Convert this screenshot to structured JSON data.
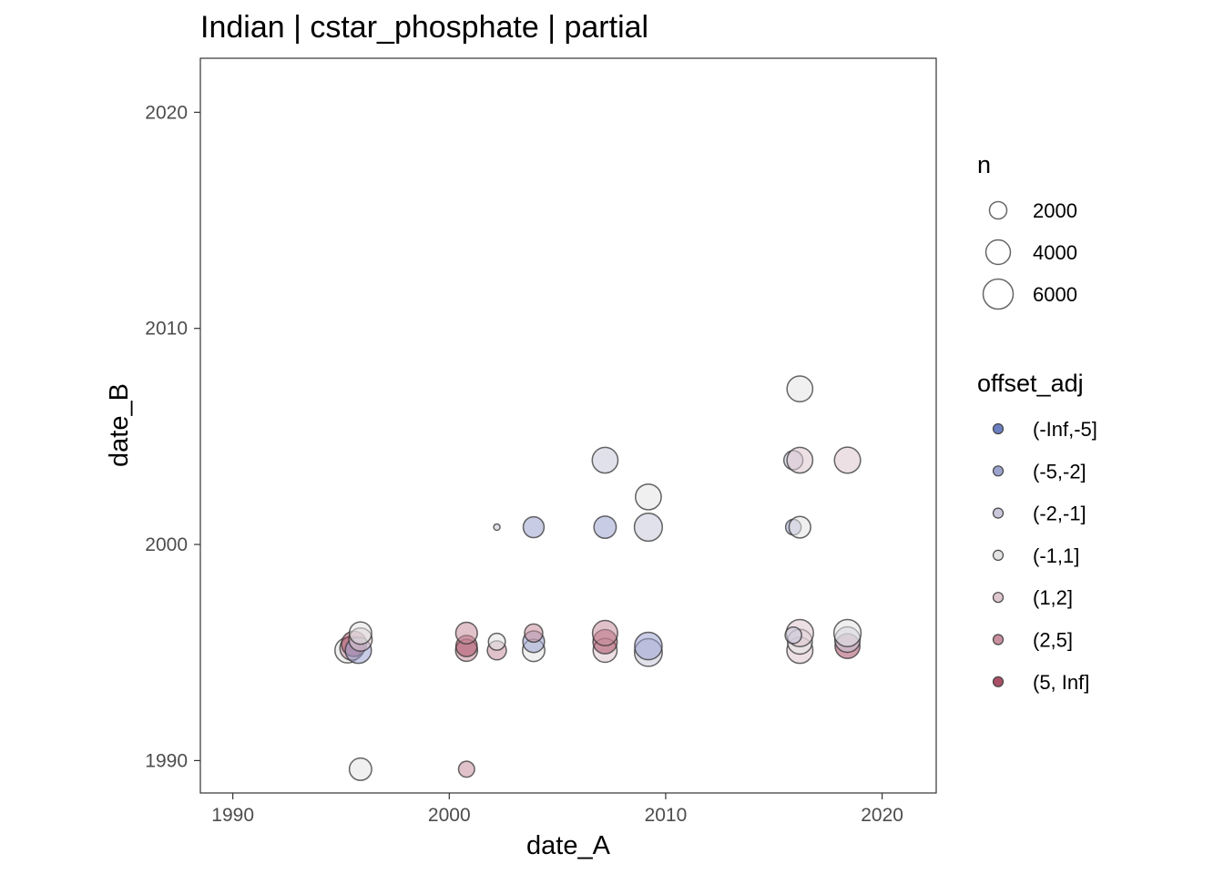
{
  "chart_data": {
    "type": "scatter",
    "title": "Indian | cstar_phosphate | partial",
    "xlabel": "date_A",
    "ylabel": "date_B",
    "xlim": [
      1988.5,
      2022.5
    ],
    "ylim": [
      1988.5,
      2022.5
    ],
    "x_ticks": [
      1990,
      2000,
      2010,
      2020
    ],
    "y_ticks": [
      1990,
      2000,
      2010,
      2020
    ],
    "x_tick_labels": [
      "1990",
      "2000",
      "2010",
      "2020"
    ],
    "y_tick_labels": [
      "1990",
      "2000",
      "2010",
      "2020"
    ],
    "grid": false,
    "legend_position": "right",
    "size_legend": {
      "title": "n",
      "values": [
        2000,
        4000,
        6000
      ],
      "labels": [
        "2000",
        "4000",
        "6000"
      ]
    },
    "color_legend": {
      "title": "offset_adj",
      "categories": [
        "(-Inf,-5]",
        "(-5,-2]",
        "(-2,-1]",
        "(-1,1]",
        "(1,2]",
        "(2,5]",
        "(5, Inf]"
      ],
      "colors": [
        "#6a7fc2",
        "#9ca3cf",
        "#c9c8da",
        "#e3e3e3",
        "#dfc7cf",
        "#c9909f",
        "#a94f66"
      ]
    },
    "points": [
      {
        "x": 1995.3,
        "y": 1995.1,
        "n": 4200,
        "cat": "(-1,1]"
      },
      {
        "x": 1995.5,
        "y": 1995.2,
        "n": 3800,
        "cat": "(2,5]"
      },
      {
        "x": 1995.6,
        "y": 1995.4,
        "n": 4200,
        "cat": "(5, Inf]"
      },
      {
        "x": 1995.8,
        "y": 1995.1,
        "n": 4500,
        "cat": "(-5,-2]"
      },
      {
        "x": 1995.9,
        "y": 1995.6,
        "n": 3600,
        "cat": "(1,2]"
      },
      {
        "x": 1995.9,
        "y": 1995.9,
        "n": 3300,
        "cat": "(-1,1]"
      },
      {
        "x": 1995.9,
        "y": 1989.6,
        "n": 3300,
        "cat": "(-1,1]"
      },
      {
        "x": 2000.8,
        "y": 1995.1,
        "n": 3200,
        "cat": "(2,5]"
      },
      {
        "x": 2000.8,
        "y": 1995.3,
        "n": 3000,
        "cat": "(5, Inf]"
      },
      {
        "x": 2000.8,
        "y": 1995.9,
        "n": 3100,
        "cat": "(2,5]"
      },
      {
        "x": 2000.8,
        "y": 1989.6,
        "n": 1700,
        "cat": "(2,5]"
      },
      {
        "x": 2002.2,
        "y": 1995.1,
        "n": 2400,
        "cat": "(2,5]"
      },
      {
        "x": 2002.2,
        "y": 1995.5,
        "n": 1900,
        "cat": "(-1,1]"
      },
      {
        "x": 2002.2,
        "y": 2000.8,
        "n": 250,
        "cat": "(-2,-1]"
      },
      {
        "x": 2003.9,
        "y": 1995.1,
        "n": 3300,
        "cat": "(-1,1]"
      },
      {
        "x": 2003.9,
        "y": 1995.5,
        "n": 3100,
        "cat": "(-5,-2]"
      },
      {
        "x": 2003.9,
        "y": 1995.9,
        "n": 2200,
        "cat": "(2,5]"
      },
      {
        "x": 2003.9,
        "y": 2000.8,
        "n": 2900,
        "cat": "(-5,-2]"
      },
      {
        "x": 2007.2,
        "y": 1995.1,
        "n": 3800,
        "cat": "(1,2]"
      },
      {
        "x": 2007.2,
        "y": 1995.5,
        "n": 3900,
        "cat": "(5, Inf]"
      },
      {
        "x": 2007.2,
        "y": 1995.9,
        "n": 4200,
        "cat": "(2,5]"
      },
      {
        "x": 2007.2,
        "y": 2000.8,
        "n": 3300,
        "cat": "(-5,-2]"
      },
      {
        "x": 2007.2,
        "y": 2003.9,
        "n": 4400,
        "cat": "(-2,-1]"
      },
      {
        "x": 2009.2,
        "y": 1995.0,
        "n": 5100,
        "cat": "(-2,-1]"
      },
      {
        "x": 2009.2,
        "y": 1995.3,
        "n": 5000,
        "cat": "(-5,-2]"
      },
      {
        "x": 2009.2,
        "y": 2000.8,
        "n": 5200,
        "cat": "(-2,-1]"
      },
      {
        "x": 2009.2,
        "y": 2002.2,
        "n": 4400,
        "cat": "(-1,1]"
      },
      {
        "x": 2016.2,
        "y": 1995.1,
        "n": 4500,
        "cat": "(1,2]"
      },
      {
        "x": 2016.2,
        "y": 1995.5,
        "n": 4100,
        "cat": "(-1,1]"
      },
      {
        "x": 2016.2,
        "y": 1995.9,
        "n": 4900,
        "cat": "(1,2]"
      },
      {
        "x": 2015.9,
        "y": 1995.8,
        "n": 1800,
        "cat": "(-2,-1]"
      },
      {
        "x": 2015.9,
        "y": 2000.8,
        "n": 1600,
        "cat": "(-5,-2]"
      },
      {
        "x": 2016.2,
        "y": 2000.8,
        "n": 3100,
        "cat": "(-1,1]"
      },
      {
        "x": 2015.9,
        "y": 2003.9,
        "n": 2400,
        "cat": "(-2,-1]"
      },
      {
        "x": 2016.2,
        "y": 2003.9,
        "n": 4400,
        "cat": "(1,2]"
      },
      {
        "x": 2016.2,
        "y": 2007.2,
        "n": 4400,
        "cat": "(-1,1]"
      },
      {
        "x": 2018.4,
        "y": 1995.3,
        "n": 4100,
        "cat": "(5, Inf]"
      },
      {
        "x": 2018.4,
        "y": 1995.6,
        "n": 4300,
        "cat": "(-2,-1]"
      },
      {
        "x": 2018.4,
        "y": 1995.9,
        "n": 4900,
        "cat": "(-1,1]"
      },
      {
        "x": 2018.4,
        "y": 2003.9,
        "n": 4500,
        "cat": "(1,2]"
      }
    ]
  }
}
